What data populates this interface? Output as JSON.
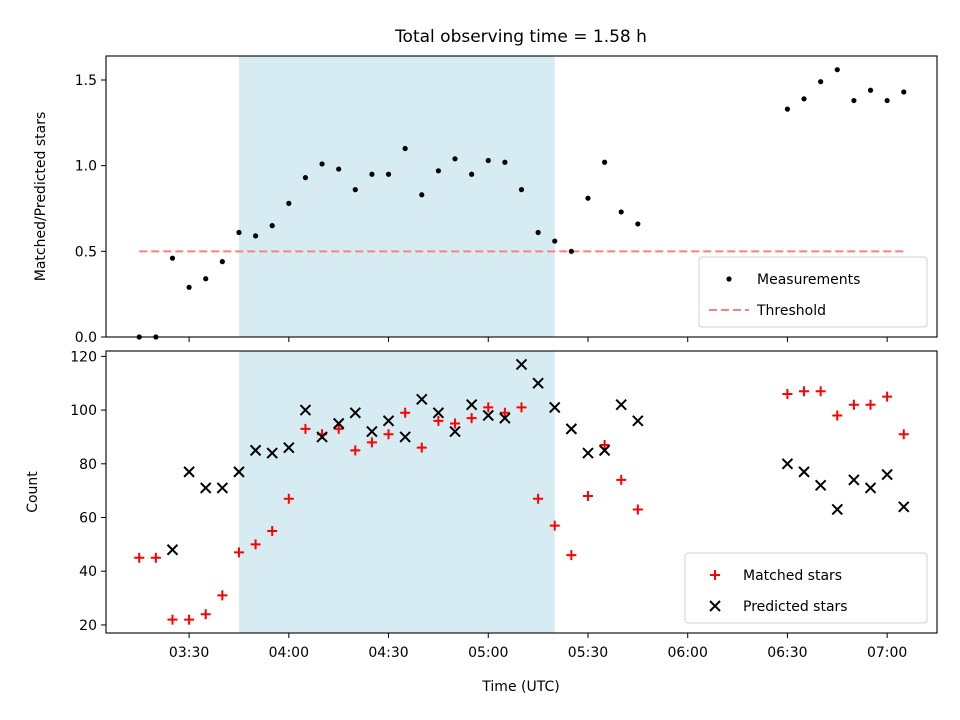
{
  "figure": {
    "title": "Total observing time = 1.58 h",
    "xlabel": "Time (UTC)",
    "x_ticks": [
      "03:30",
      "04:00",
      "04:30",
      "05:00",
      "05:30",
      "06:00",
      "06:30",
      "07:00"
    ],
    "x_tick_minutes": [
      210,
      240,
      270,
      300,
      330,
      360,
      390,
      420
    ]
  },
  "colors": {
    "measurements": "#000000",
    "threshold": "#ff7f7f",
    "matched": "#ff0000",
    "predicted": "#000000",
    "span": "#add8e6"
  },
  "chart_data": [
    {
      "type": "scatter",
      "ylabel": "Matched/Predicted stars",
      "xlim": [
        "03:05",
        "07:15"
      ],
      "ylim": [
        0,
        1.64
      ],
      "y_ticks": [
        "0.0",
        "0.5",
        "1.0",
        "1.5"
      ],
      "y_tick_values": [
        0,
        0.5,
        1.0,
        1.5
      ],
      "shaded_span": {
        "from": "03:45",
        "to": "05:20"
      },
      "threshold": {
        "y": 0.5,
        "from": "03:15",
        "to": "07:05"
      },
      "legend": {
        "position": "lower right",
        "entries": [
          "Measurements",
          "Threshold"
        ]
      },
      "series": [
        {
          "name": "Measurements",
          "marker": "dot",
          "points": [
            [
              "03:15",
              0.0
            ],
            [
              "03:20",
              0.0
            ],
            [
              "03:25",
              0.46
            ],
            [
              "03:30",
              0.29
            ],
            [
              "03:35",
              0.34
            ],
            [
              "03:40",
              0.44
            ],
            [
              "03:45",
              0.61
            ],
            [
              "03:50",
              0.59
            ],
            [
              "03:55",
              0.65
            ],
            [
              "04:00",
              0.78
            ],
            [
              "04:05",
              0.93
            ],
            [
              "04:10",
              1.01
            ],
            [
              "04:15",
              0.98
            ],
            [
              "04:20",
              0.86
            ],
            [
              "04:25",
              0.95
            ],
            [
              "04:30",
              0.95
            ],
            [
              "04:35",
              1.1
            ],
            [
              "04:40",
              0.83
            ],
            [
              "04:45",
              0.97
            ],
            [
              "04:50",
              1.04
            ],
            [
              "04:55",
              0.95
            ],
            [
              "05:00",
              1.03
            ],
            [
              "05:05",
              1.02
            ],
            [
              "05:10",
              0.86
            ],
            [
              "05:15",
              0.61
            ],
            [
              "05:20",
              0.56
            ],
            [
              "05:25",
              0.5
            ],
            [
              "05:30",
              0.81
            ],
            [
              "05:35",
              1.02
            ],
            [
              "05:40",
              0.73
            ],
            [
              "05:45",
              0.66
            ],
            [
              "06:30",
              1.33
            ],
            [
              "06:35",
              1.39
            ],
            [
              "06:40",
              1.49
            ],
            [
              "06:45",
              1.56
            ],
            [
              "06:50",
              1.38
            ],
            [
              "06:55",
              1.44
            ],
            [
              "07:00",
              1.38
            ],
            [
              "07:05",
              1.43
            ]
          ]
        }
      ]
    },
    {
      "type": "scatter",
      "ylabel": "Count",
      "xlim": [
        "03:05",
        "07:15"
      ],
      "ylim": [
        17,
        122
      ],
      "y_ticks": [
        "20",
        "40",
        "60",
        "80",
        "100",
        "120"
      ],
      "y_tick_values": [
        20,
        40,
        60,
        80,
        100,
        120
      ],
      "shaded_span": {
        "from": "03:45",
        "to": "05:20"
      },
      "legend": {
        "position": "lower right",
        "entries": [
          "Matched stars",
          "Predicted stars"
        ]
      },
      "series": [
        {
          "name": "Matched stars",
          "marker": "plus",
          "points": [
            [
              "03:15",
              45
            ],
            [
              "03:20",
              45
            ],
            [
              "03:25",
              22
            ],
            [
              "03:30",
              22
            ],
            [
              "03:35",
              24
            ],
            [
              "03:40",
              31
            ],
            [
              "03:45",
              47
            ],
            [
              "03:50",
              50
            ],
            [
              "03:55",
              55
            ],
            [
              "04:00",
              67
            ],
            [
              "04:05",
              93
            ],
            [
              "04:10",
              91
            ],
            [
              "04:15",
              93
            ],
            [
              "04:20",
              85
            ],
            [
              "04:25",
              88
            ],
            [
              "04:30",
              91
            ],
            [
              "04:35",
              99
            ],
            [
              "04:40",
              86
            ],
            [
              "04:45",
              96
            ],
            [
              "04:50",
              95
            ],
            [
              "04:55",
              97
            ],
            [
              "05:00",
              101
            ],
            [
              "05:05",
              99
            ],
            [
              "05:10",
              101
            ],
            [
              "05:15",
              67
            ],
            [
              "05:20",
              57
            ],
            [
              "05:25",
              46
            ],
            [
              "05:30",
              68
            ],
            [
              "05:35",
              87
            ],
            [
              "05:40",
              74
            ],
            [
              "05:45",
              63
            ],
            [
              "06:30",
              106
            ],
            [
              "06:35",
              107
            ],
            [
              "06:40",
              107
            ],
            [
              "06:45",
              98
            ],
            [
              "06:50",
              102
            ],
            [
              "06:55",
              102
            ],
            [
              "07:00",
              105
            ],
            [
              "07:05",
              91
            ]
          ]
        },
        {
          "name": "Predicted stars",
          "marker": "x",
          "points": [
            [
              "03:25",
              48
            ],
            [
              "03:30",
              77
            ],
            [
              "03:35",
              71
            ],
            [
              "03:40",
              71
            ],
            [
              "03:45",
              77
            ],
            [
              "03:50",
              85
            ],
            [
              "03:55",
              84
            ],
            [
              "04:00",
              86
            ],
            [
              "04:05",
              100
            ],
            [
              "04:10",
              90
            ],
            [
              "04:15",
              95
            ],
            [
              "04:20",
              99
            ],
            [
              "04:25",
              92
            ],
            [
              "04:30",
              96
            ],
            [
              "04:35",
              90
            ],
            [
              "04:40",
              104
            ],
            [
              "04:45",
              99
            ],
            [
              "04:50",
              92
            ],
            [
              "04:55",
              102
            ],
            [
              "05:00",
              98
            ],
            [
              "05:05",
              97
            ],
            [
              "05:10",
              117
            ],
            [
              "05:15",
              110
            ],
            [
              "05:20",
              101
            ],
            [
              "05:25",
              93
            ],
            [
              "05:30",
              84
            ],
            [
              "05:35",
              85
            ],
            [
              "05:40",
              102
            ],
            [
              "05:45",
              96
            ],
            [
              "06:30",
              80
            ],
            [
              "06:35",
              77
            ],
            [
              "06:40",
              72
            ],
            [
              "06:45",
              63
            ],
            [
              "06:50",
              74
            ],
            [
              "06:55",
              71
            ],
            [
              "07:00",
              76
            ],
            [
              "07:05",
              64
            ]
          ]
        }
      ]
    }
  ]
}
